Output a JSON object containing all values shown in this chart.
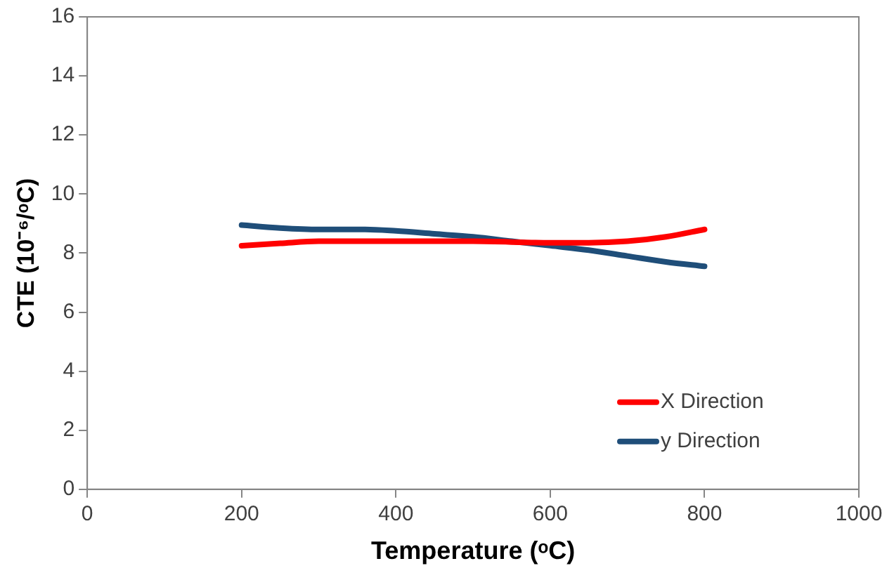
{
  "chart_data": {
    "type": "line",
    "xlabel": "Temperature (ᵒC)",
    "ylabel": "CTE (10⁻⁶/ᵒC)",
    "xlim": [
      0,
      1000
    ],
    "xticks": [
      0,
      200,
      400,
      600,
      800,
      1000
    ],
    "ylim": [
      0,
      16
    ],
    "yticks": [
      0,
      2,
      4,
      6,
      8,
      10,
      12,
      14,
      16
    ],
    "grid": false,
    "legend": "bottom right",
    "marker": "none",
    "line_style": "solid",
    "series": [
      {
        "name": "X Direction",
        "color": "#ff0000",
        "x": [
          200,
          250,
          300,
          400,
          500,
          600,
          650,
          700,
          750,
          800
        ],
        "values": [
          8.25,
          8.33,
          8.4,
          8.4,
          8.4,
          8.35,
          8.35,
          8.4,
          8.55,
          8.8
        ]
      },
      {
        "name": "y Direction",
        "color": "#1f4e79",
        "x": [
          200,
          250,
          300,
          360,
          400,
          450,
          500,
          550,
          600,
          650,
          700,
          750,
          800
        ],
        "values": [
          8.95,
          8.85,
          8.8,
          8.8,
          8.75,
          8.65,
          8.55,
          8.4,
          8.25,
          8.1,
          7.9,
          7.7,
          7.55
        ]
      }
    ]
  }
}
